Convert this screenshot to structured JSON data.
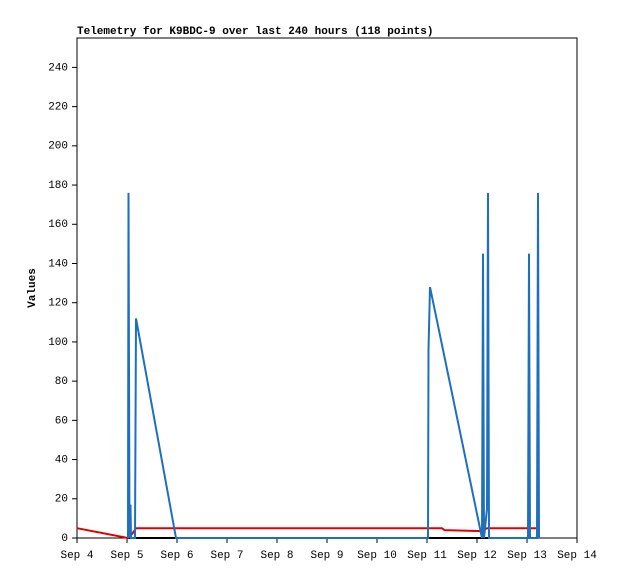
{
  "chart_data": {
    "type": "line",
    "title": "Telemetry for K9BDC-9 over last 240 hours (118 points)",
    "y_label": "Values",
    "xlim": [
      4,
      14
    ],
    "xticks": [
      {
        "value": 4,
        "label": "Sep 4"
      },
      {
        "value": 5,
        "label": "Sep 5"
      },
      {
        "value": 6,
        "label": "Sep 6"
      },
      {
        "value": 7,
        "label": "Sep 7"
      },
      {
        "value": 8,
        "label": "Sep 8"
      },
      {
        "value": 9,
        "label": "Sep 9"
      },
      {
        "value": 10,
        "label": "Sep 10"
      },
      {
        "value": 11,
        "label": "Sep 11"
      },
      {
        "value": 12,
        "label": "Sep 12"
      },
      {
        "value": 13,
        "label": "Sep 13"
      },
      {
        "value": 14,
        "label": "Sep 14"
      }
    ],
    "ylim": [
      0,
      255
    ],
    "yticks": [
      0,
      20,
      40,
      60,
      80,
      100,
      120,
      140,
      160,
      180,
      200,
      220,
      240
    ],
    "grid": false,
    "series": [
      {
        "color": "#000000",
        "x": [
          5.0,
          13.2
        ],
        "values": [
          0,
          0
        ]
      },
      {
        "color": "#e00000",
        "x": [
          4.0,
          5.02,
          5.1,
          5.18,
          11.3,
          11.35,
          12.1,
          12.2,
          13.22
        ],
        "values": [
          5,
          0,
          2,
          5,
          5,
          4,
          3.5,
          5,
          5
        ]
      },
      {
        "color": "#1f6fbf",
        "x": [
          5.02,
          5.03,
          5.05,
          5.07,
          5.08,
          5.16,
          5.18,
          5.98,
          11.02,
          11.03,
          11.06,
          12.1,
          12.12,
          12.14,
          12.2,
          12.22,
          12.24,
          13.02,
          13.04,
          13.06,
          13.2,
          13.22,
          13.24
        ],
        "values": [
          0,
          176,
          0,
          17,
          0,
          0,
          112,
          0,
          0,
          96,
          128,
          0,
          145,
          0,
          15,
          176,
          0,
          0,
          145,
          0,
          0,
          176,
          0
        ]
      }
    ]
  }
}
